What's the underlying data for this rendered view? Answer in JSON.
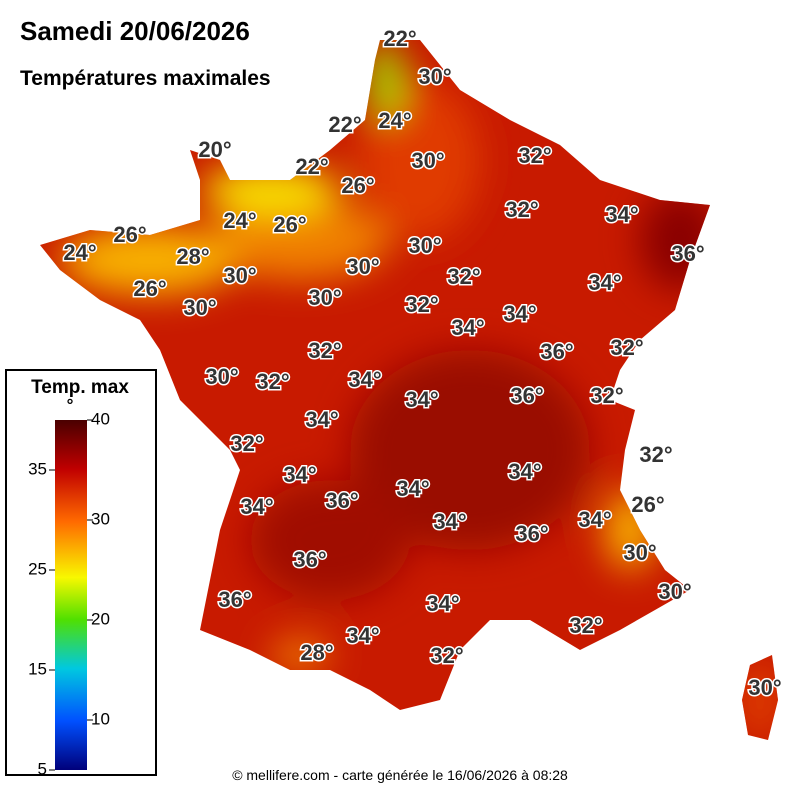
{
  "title": "Samedi 20/06/2026",
  "subtitle": "Températures maximales",
  "legend": {
    "title": "Temp. max",
    "unit": "°",
    "range": [
      5,
      40
    ],
    "ticks": [
      5,
      10,
      15,
      20,
      25,
      30,
      35,
      40
    ]
  },
  "labels": [
    "22°",
    "30°",
    "22°",
    "24°",
    "20°",
    "30°",
    "32°",
    "22°",
    "26°",
    "32°",
    "34°",
    "24°",
    "26°",
    "26°",
    "24°",
    "30°",
    "36°",
    "28°",
    "30°",
    "30°",
    "32°",
    "34°",
    "26°",
    "30°",
    "30°",
    "32°",
    "34°",
    "34°",
    "36°",
    "32°",
    "32°",
    "30°",
    "32°",
    "34°",
    "34°",
    "36°",
    "32°",
    "34°",
    "32°",
    "32°",
    "34°",
    "34°",
    "34°",
    "36°",
    "26°",
    "34°",
    "34°",
    "36°",
    "34°",
    "30°",
    "36°",
    "30°",
    "36°",
    "34°",
    "32°",
    "34°",
    "28°",
    "32°",
    "30°"
  ],
  "footer": "© mellifere.com - carte générée le 16/06/2026 à 08:28"
}
